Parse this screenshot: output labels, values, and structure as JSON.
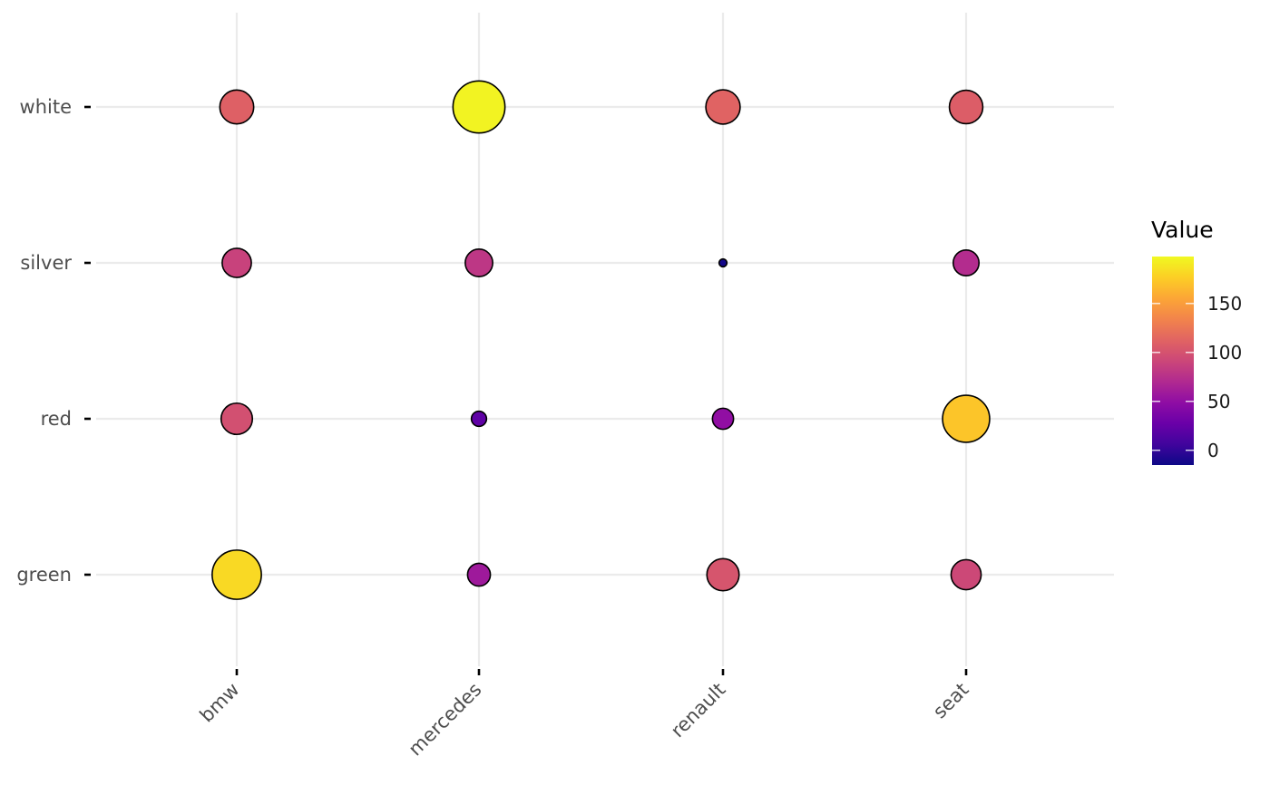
{
  "chart_data": {
    "type": "bubble-heatmap",
    "title": "",
    "xlabel": "",
    "ylabel": "",
    "categories_x": [
      "bmw",
      "mercedes",
      "renault",
      "seat"
    ],
    "categories_y": [
      "green",
      "red",
      "silver",
      "white"
    ],
    "points": [
      {
        "x": "bmw",
        "y": "white",
        "value": 110
      },
      {
        "x": "mercedes",
        "y": "white",
        "value": 195
      },
      {
        "x": "renault",
        "y": "white",
        "value": 112
      },
      {
        "x": "seat",
        "y": "white",
        "value": 108
      },
      {
        "x": "bmw",
        "y": "silver",
        "value": 88
      },
      {
        "x": "mercedes",
        "y": "silver",
        "value": 80
      },
      {
        "x": "renault",
        "y": "silver",
        "value": -12
      },
      {
        "x": "seat",
        "y": "silver",
        "value": 72
      },
      {
        "x": "bmw",
        "y": "red",
        "value": 98
      },
      {
        "x": "mercedes",
        "y": "red",
        "value": 22
      },
      {
        "x": "renault",
        "y": "red",
        "value": 50
      },
      {
        "x": "seat",
        "y": "red",
        "value": 172
      },
      {
        "x": "bmw",
        "y": "green",
        "value": 182
      },
      {
        "x": "mercedes",
        "y": "green",
        "value": 58
      },
      {
        "x": "renault",
        "y": "green",
        "value": 102
      },
      {
        "x": "seat",
        "y": "green",
        "value": 92
      }
    ],
    "color_scale": {
      "name": "plasma",
      "range": [
        -15,
        198
      ],
      "stops": [
        "#0d0887",
        "#41049d",
        "#6a00a8",
        "#8f0da4",
        "#b12a90",
        "#cc4778",
        "#e16462",
        "#f2844b",
        "#fca636",
        "#fcce25",
        "#f0f921"
      ]
    },
    "legend": {
      "title": "Value",
      "ticks": [
        0,
        50,
        100,
        150
      ],
      "position": "right"
    },
    "grid": true
  }
}
